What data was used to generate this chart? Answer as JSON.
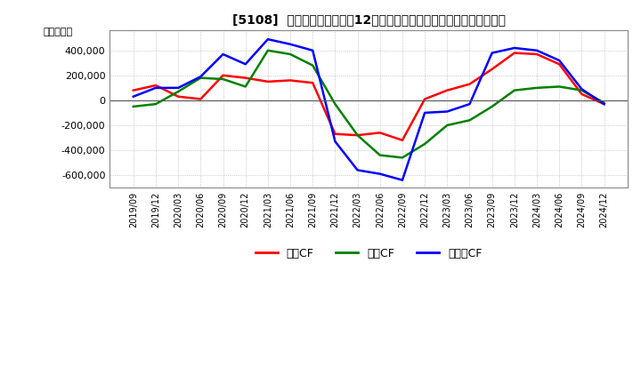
{
  "title": "[5108]  キャッシュフローの12か月移動合計の対前年同期増減額の推移",
  "ylabel": "（百万円）",
  "legend": [
    "営業CF",
    "投資CF",
    "フリーCF"
  ],
  "legend_colors": [
    "#ff0000",
    "#008000",
    "#0000ff"
  ],
  "x_labels": [
    "2019/09",
    "2019/12",
    "2020/03",
    "2020/06",
    "2020/09",
    "2020/12",
    "2021/03",
    "2021/06",
    "2021/09",
    "2021/12",
    "2022/03",
    "2022/06",
    "2022/09",
    "2022/12",
    "2023/03",
    "2023/06",
    "2023/09",
    "2023/12",
    "2024/03",
    "2024/06",
    "2024/09",
    "2024/12"
  ],
  "operating_cf": [
    80000,
    120000,
    30000,
    10000,
    200000,
    180000,
    150000,
    160000,
    140000,
    -270000,
    -280000,
    -260000,
    -320000,
    10000,
    80000,
    130000,
    250000,
    380000,
    370000,
    290000,
    50000,
    -30000
  ],
  "investing_cf": [
    -50000,
    -30000,
    70000,
    180000,
    170000,
    110000,
    400000,
    370000,
    280000,
    -30000,
    -280000,
    -440000,
    -460000,
    -350000,
    -200000,
    -160000,
    -50000,
    80000,
    100000,
    110000,
    80000,
    -20000
  ],
  "free_cf": [
    30000,
    100000,
    100000,
    190000,
    370000,
    290000,
    490000,
    450000,
    400000,
    -330000,
    -560000,
    -590000,
    -640000,
    -100000,
    -90000,
    -30000,
    380000,
    420000,
    400000,
    320000,
    90000,
    -30000
  ],
  "ylim": [
    -700000,
    560000
  ],
  "yticks": [
    -600000,
    -400000,
    -200000,
    0,
    200000,
    400000
  ],
  "background_color": "#ffffff",
  "plot_bg_color": "#ffffff",
  "grid_color": "#aaaaaa",
  "line_width": 1.8
}
